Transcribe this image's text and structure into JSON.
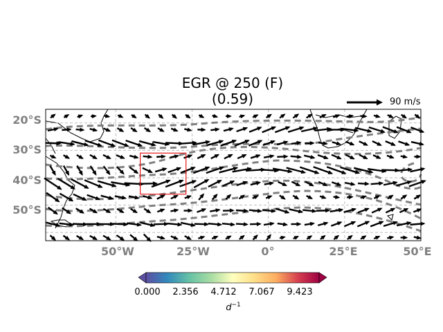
{
  "title": {
    "line1": "EGR @ 250 (F)",
    "line2": "(0.59)"
  },
  "reference_vector": {
    "label": "90 m/s",
    "magnitude_ms": 90
  },
  "map": {
    "lon_range_deg": [
      -73,
      50
    ],
    "lat_range_deg": [
      -63,
      -15
    ],
    "projection": "PlateCarree",
    "gridlines": true,
    "gridline_style": "dashed",
    "lat_tick_labels": [
      "20°S",
      "30°S",
      "40°S",
      "50°S"
    ],
    "lon_tick_labels": [
      "50°W",
      "25°W",
      "0°",
      "25°E",
      "50°E"
    ],
    "highlight_box": {
      "lon_range_deg": [
        -42,
        -27
      ],
      "lat_range_deg": [
        -46,
        -31
      ],
      "color": "#e41a1c"
    },
    "contour_color": "#808080",
    "contour_style": "dashed",
    "vector_color": "#000000"
  },
  "colorbar": {
    "colormap": "Spectral_r",
    "tick_labels": [
      "0.000",
      "2.356",
      "4.712",
      "7.067",
      "9.423"
    ],
    "unit_base": "d",
    "unit_exp": "−1",
    "extend": "both"
  }
}
